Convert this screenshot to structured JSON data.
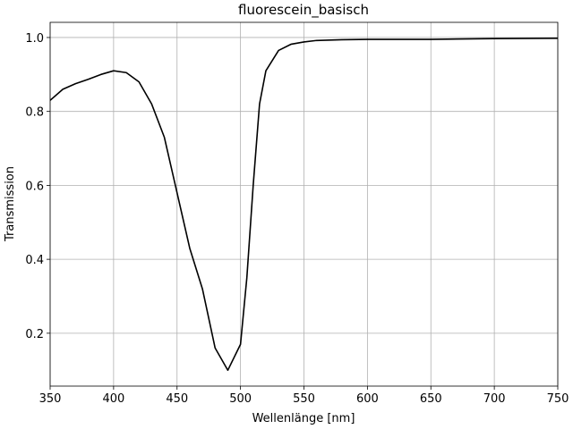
{
  "chart_data": {
    "type": "line",
    "title": "fluorescein_basisch",
    "xlabel": "Wellenlänge [nm]",
    "ylabel": "Transmission",
    "x": [
      350,
      360,
      370,
      380,
      390,
      400,
      410,
      420,
      430,
      440,
      450,
      460,
      470,
      480,
      490,
      500,
      505,
      510,
      515,
      520,
      530,
      540,
      550,
      560,
      580,
      600,
      650,
      700,
      750
    ],
    "values": [
      0.83,
      0.86,
      0.875,
      0.887,
      0.9,
      0.91,
      0.905,
      0.88,
      0.82,
      0.73,
      0.58,
      0.43,
      0.32,
      0.16,
      0.1,
      0.17,
      0.35,
      0.6,
      0.82,
      0.91,
      0.965,
      0.982,
      0.988,
      0.992,
      0.994,
      0.995,
      0.995,
      0.997,
      0.998
    ],
    "color": "#000000",
    "xlim": [
      350,
      750
    ],
    "ylim": [
      0.057,
      1.041
    ],
    "xticks": [
      350,
      400,
      450,
      500,
      550,
      600,
      650,
      700,
      750
    ],
    "yticks": [
      0.2,
      0.4,
      0.6,
      0.8,
      {
        "value": 1,
        "label": "1.0"
      }
    ],
    "grid": true
  }
}
